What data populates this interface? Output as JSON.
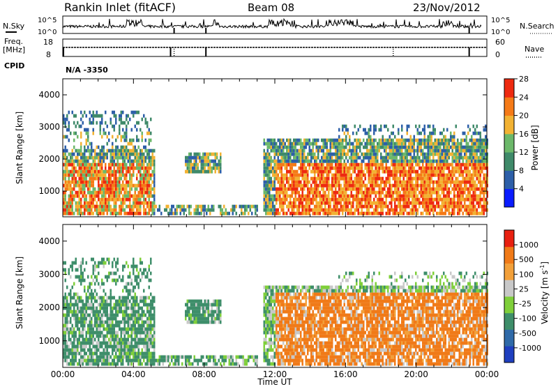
{
  "header": {
    "station": "Rankin Inlet (fitACF)",
    "beam": "Beam 08",
    "date": "23/Nov/2012"
  },
  "status_panels": {
    "nsky_label": "N.Sky",
    "nsearch_label": "N.Search",
    "noise_ticks": [
      "10^5",
      "10^0"
    ],
    "freq_label": "Freq.",
    "freq_unit": "[MHz]",
    "freq_ticks": [
      "18",
      "8"
    ],
    "nave_label": "Nave",
    "nave_ticks": [
      "60",
      "0"
    ],
    "cpid_label": "CPID",
    "cpid_value": "N/A -3350"
  },
  "chart_data": [
    {
      "type": "heatmap",
      "name": "power",
      "xlabel": "",
      "ylabel": "Slant Range [km]",
      "y_ticks": [
        1000,
        2000,
        3000,
        4000
      ],
      "ylim": [
        200,
        4500
      ],
      "xlim_hours": [
        0,
        24
      ],
      "colorbar_label": "Power [dB]",
      "colorbar_ticks": [
        "4",
        "8",
        "12",
        "16",
        "20",
        "24",
        "28"
      ],
      "colorbar_colors": [
        "#0a1cff",
        "#2d5fa8",
        "#3f8a6a",
        "#6cb86a",
        "#f2b233",
        "#f57a17",
        "#ee2a10"
      ]
    },
    {
      "type": "heatmap",
      "name": "velocity",
      "xlabel": "Time UT",
      "ylabel": "Slant Range [km]",
      "y_ticks": [
        1000,
        2000,
        3000,
        4000
      ],
      "ylim": [
        200,
        4500
      ],
      "x_ticks": [
        "00:00",
        "04:00",
        "08:00",
        "12:00",
        "16:00",
        "20:00",
        "00:00"
      ],
      "colorbar_label": "Velocity [m s^-1]",
      "colorbar_ticks": [
        "1000",
        "500",
        "100",
        "25",
        "-25",
        "-100",
        "-500",
        "-1000"
      ],
      "colorbar_colors": [
        "#1f3fbf",
        "#2f6aa8",
        "#3e8e6a",
        "#7fcf3a",
        "#c8c8c8",
        "#f2a03a",
        "#f07a18",
        "#e82010"
      ]
    }
  ]
}
